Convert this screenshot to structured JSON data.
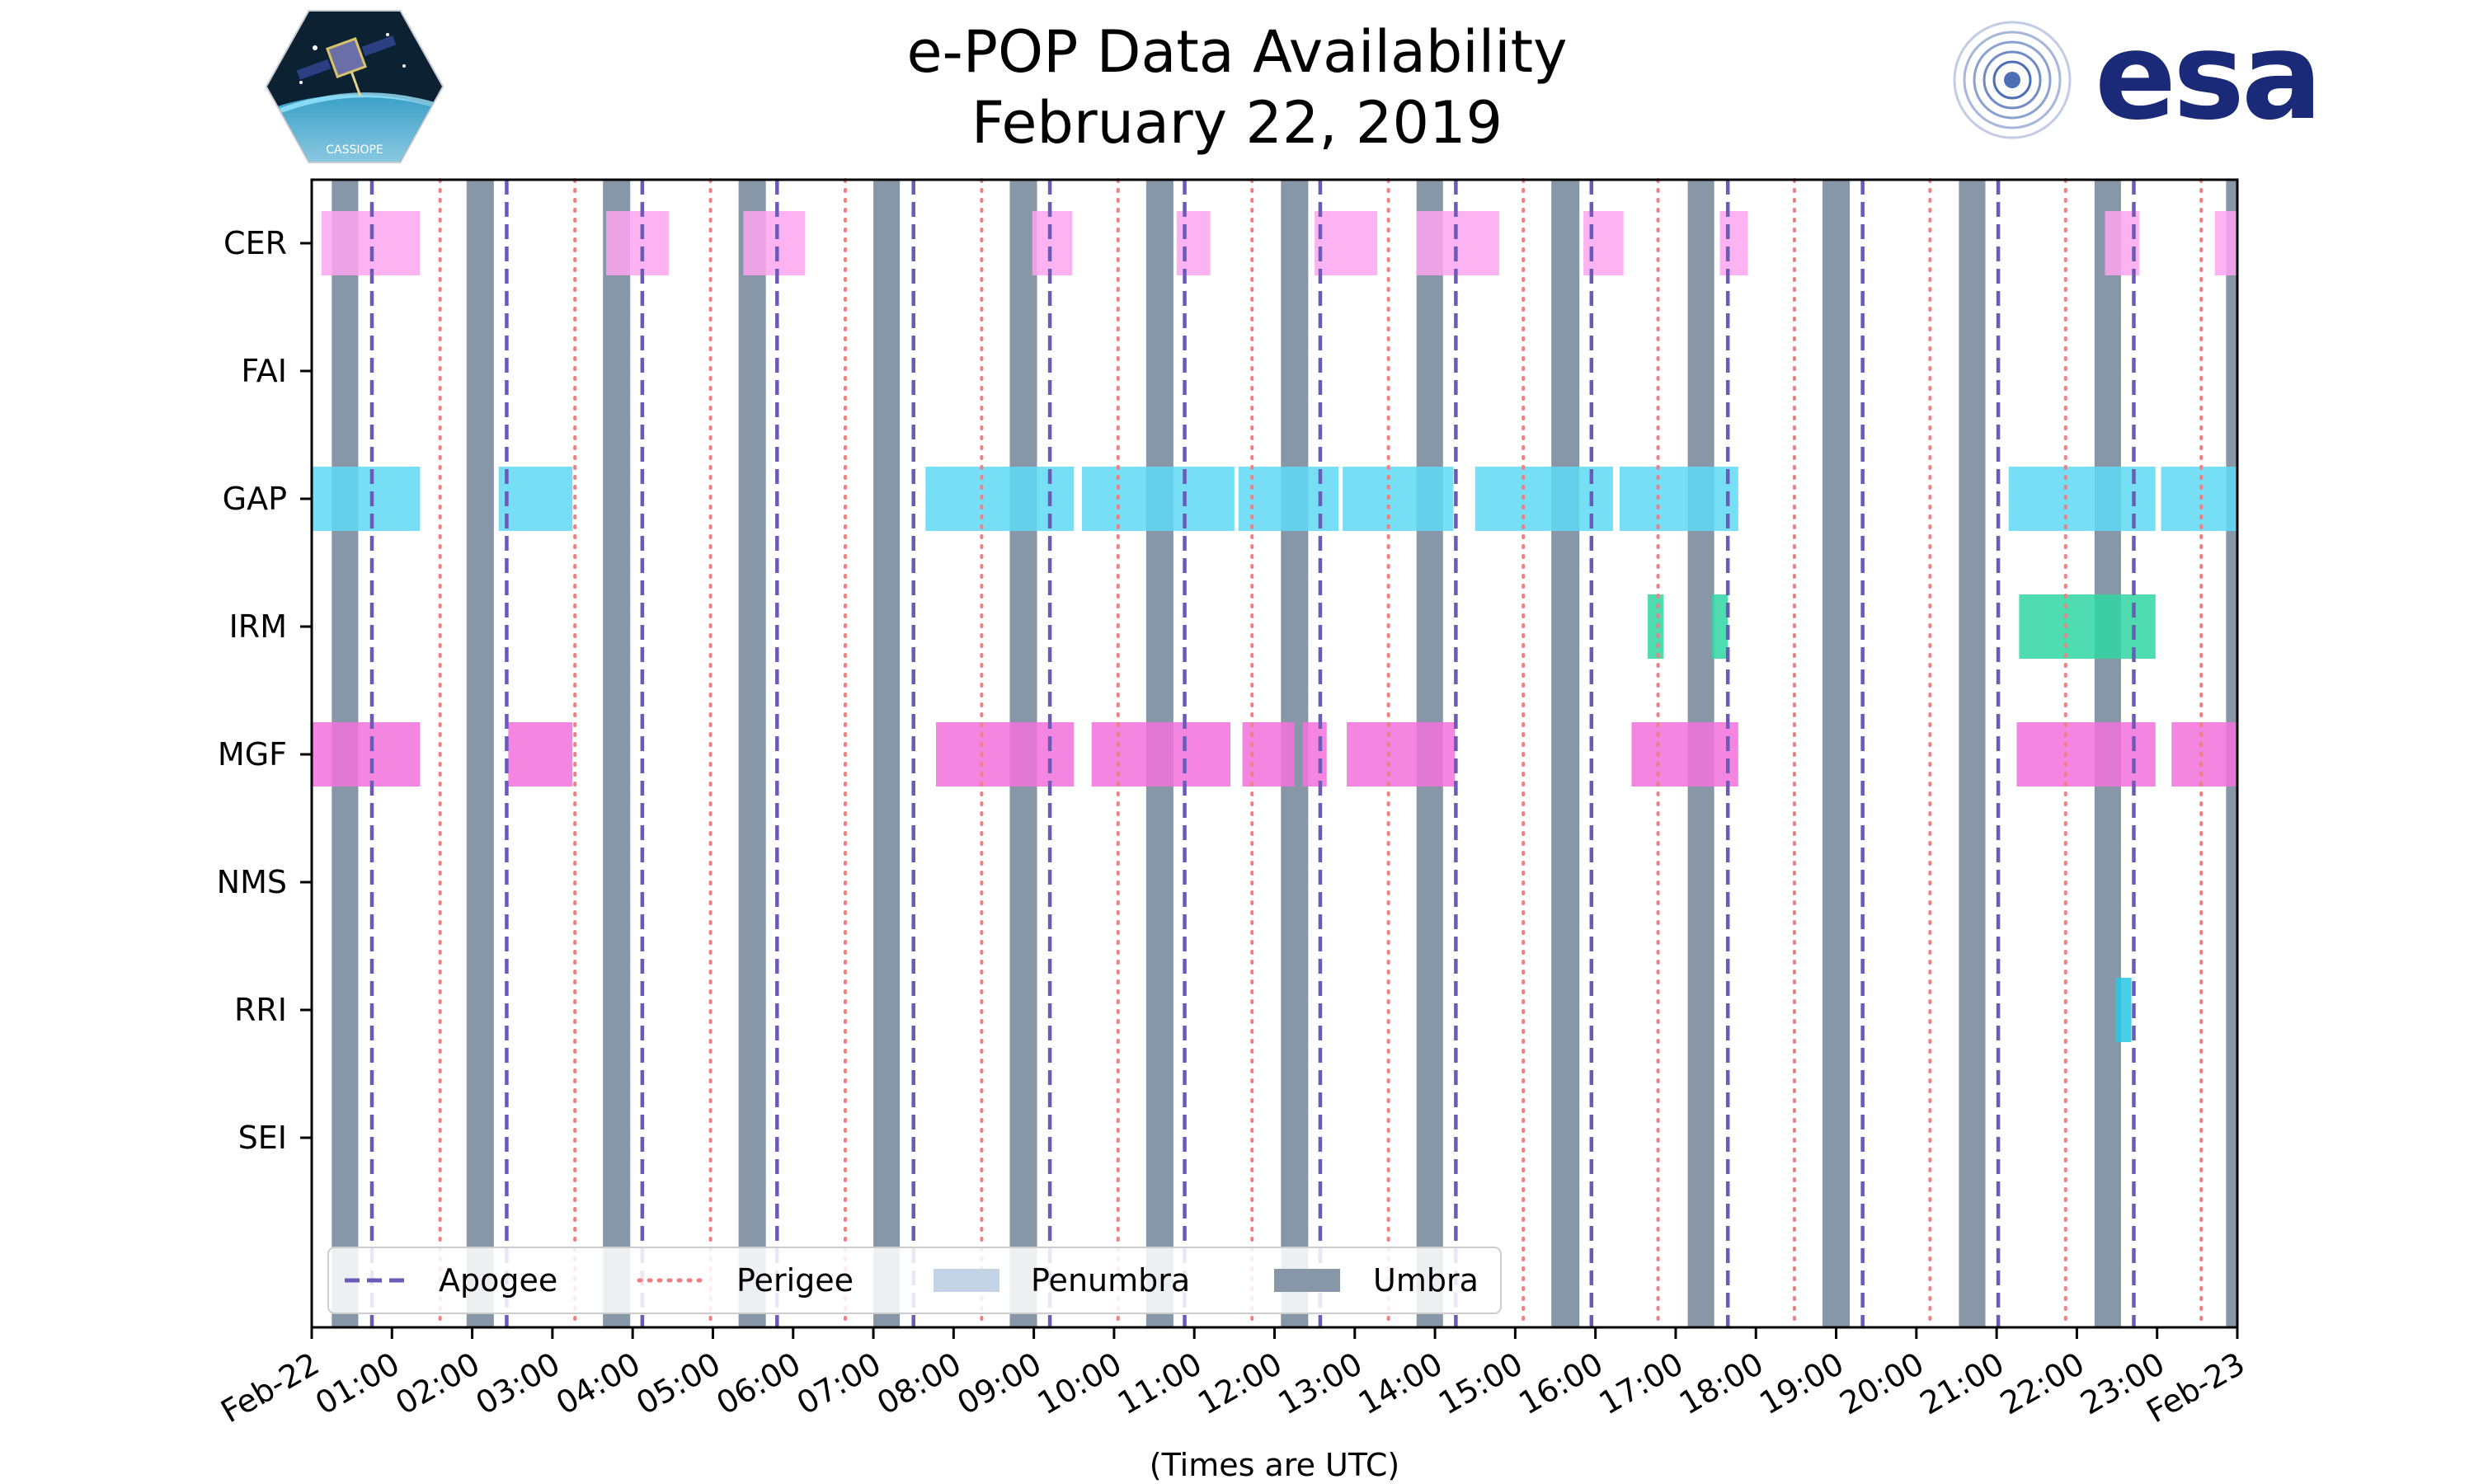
{
  "title_line1": "e-POP Data Availability",
  "title_line2": "February 22, 2019",
  "logos": {
    "left": "cassiope-mission-logo",
    "right": "esa-logo",
    "right_text": "esa",
    "left_text": "CASSIOPE"
  },
  "chart_data": {
    "type": "timeline",
    "xlabel": "(Times are UTC)",
    "xlim": [
      0,
      24
    ],
    "x_tick_labels": [
      "Feb-22",
      "01:00",
      "02:00",
      "03:00",
      "04:00",
      "05:00",
      "06:00",
      "07:00",
      "08:00",
      "09:00",
      "10:00",
      "11:00",
      "12:00",
      "13:00",
      "14:00",
      "15:00",
      "16:00",
      "17:00",
      "18:00",
      "19:00",
      "20:00",
      "21:00",
      "22:00",
      "23:00",
      "Feb-23"
    ],
    "instruments": [
      "CER",
      "FAI",
      "GAP",
      "IRM",
      "MGF",
      "NMS",
      "RRI",
      "SEI"
    ],
    "colors": {
      "CER": "#fda4f0",
      "GAP": "#5ed9f4",
      "IRM": "#2fd6a2",
      "MGF": "#f271dc",
      "RRI": "#29c6e6",
      "apogee": "#6b5bb8",
      "perigee": "#f08080",
      "penumbra": "#c5d3e6",
      "umbra": "#8797a8"
    },
    "umbra": [
      [
        0.25,
        0.58
      ],
      [
        1.93,
        2.27
      ],
      [
        3.63,
        3.97
      ],
      [
        5.32,
        5.66
      ],
      [
        7.0,
        7.33
      ],
      [
        8.7,
        9.04
      ],
      [
        10.4,
        10.74
      ],
      [
        12.08,
        12.42
      ],
      [
        13.77,
        14.1
      ],
      [
        15.45,
        15.8
      ],
      [
        17.15,
        17.48
      ],
      [
        18.83,
        19.17
      ],
      [
        20.53,
        20.86
      ],
      [
        22.22,
        22.55
      ],
      [
        23.86,
        24.0
      ]
    ],
    "apogee": [
      0.75,
      2.43,
      4.12,
      5.8,
      7.5,
      9.2,
      10.88,
      12.57,
      14.26,
      15.95,
      17.65,
      19.33,
      21.02,
      22.71
    ],
    "perigee": [
      1.6,
      3.28,
      4.97,
      6.65,
      8.35,
      10.05,
      11.72,
      13.42,
      15.1,
      16.78,
      18.48,
      20.17,
      21.86,
      23.55
    ],
    "legend": {
      "items": [
        "Apogee",
        "Perigee",
        "Penumbra",
        "Umbra"
      ],
      "location": "lower-left"
    },
    "bars": {
      "CER": [
        [
          0.12,
          1.35
        ],
        [
          3.67,
          4.45
        ],
        [
          5.38,
          6.15
        ],
        [
          8.98,
          9.48
        ],
        [
          10.78,
          11.2
        ],
        [
          12.5,
          13.28
        ],
        [
          13.77,
          14.8
        ],
        [
          15.85,
          16.35
        ],
        [
          17.55,
          17.9
        ],
        [
          22.35,
          22.78
        ],
        [
          23.72,
          24.0
        ]
      ],
      "FAI": [],
      "GAP": [
        [
          0.0,
          1.35
        ],
        [
          2.33,
          3.25
        ],
        [
          7.65,
          9.5
        ],
        [
          9.6,
          11.5
        ],
        [
          11.55,
          12.35
        ],
        [
          12.35,
          12.8
        ],
        [
          12.85,
          14.23
        ],
        [
          14.5,
          16.22
        ],
        [
          16.3,
          17.78
        ],
        [
          21.15,
          22.98
        ],
        [
          23.05,
          24.0
        ]
      ],
      "IRM": [
        [
          16.65,
          16.85
        ],
        [
          17.45,
          17.65
        ],
        [
          21.28,
          22.98
        ]
      ],
      "MGF": [
        [
          0.0,
          1.35
        ],
        [
          2.45,
          3.25
        ],
        [
          7.78,
          9.5
        ],
        [
          9.72,
          11.45
        ],
        [
          11.6,
          12.25
        ],
        [
          12.35,
          12.65
        ],
        [
          12.9,
          14.25
        ],
        [
          16.45,
          17.78
        ],
        [
          21.25,
          22.98
        ],
        [
          23.18,
          24.0
        ]
      ],
      "NMS": [],
      "RRI": [
        [
          22.48,
          22.68
        ]
      ],
      "SEI": []
    }
  }
}
